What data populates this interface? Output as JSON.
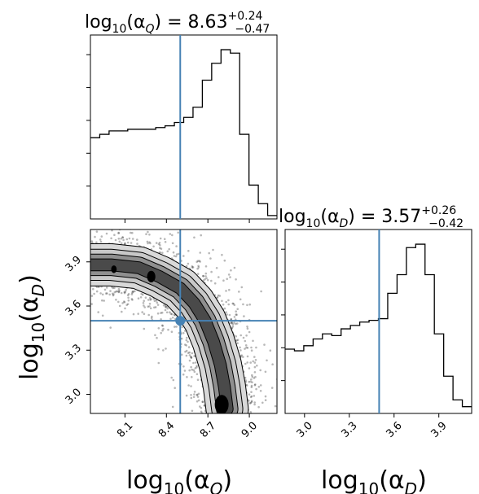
{
  "colors": {
    "truth": "#4682b4",
    "hist": "#000000"
  },
  "parameters": [
    {
      "symbol": "Q",
      "label": "log10(αQ)",
      "median": "8.63",
      "plus": "+0.24",
      "minus": "−0.47",
      "truth": 8.5
    },
    {
      "symbol": "D",
      "label": "log10(αD)",
      "median": "3.57",
      "plus": "+0.26",
      "minus": "−0.42",
      "truth": 3.5
    }
  ],
  "titles": {
    "q": {
      "prefix": "log",
      "base": "10",
      "open": "(α",
      "sym": "Q",
      "close": ") = 8.63",
      "plus": "+0.24",
      "minus": "−0.47"
    },
    "d": {
      "prefix": "log",
      "base": "10",
      "open": "(α",
      "sym": "D",
      "close": ") = 3.57",
      "plus": "+0.26",
      "minus": "−0.42"
    }
  },
  "axis_labels": {
    "x_q": {
      "prefix": "log",
      "base": "10",
      "open": "(α",
      "sym": "Q",
      "close": ")"
    },
    "x_d": {
      "prefix": "log",
      "base": "10",
      "open": "(α",
      "sym": "D",
      "close": ")"
    },
    "y_d": {
      "prefix": "log",
      "base": "10",
      "open": "(α",
      "sym": "D",
      "close": ")"
    }
  },
  "chart_data": [
    {
      "type": "histogram",
      "panel": "log10(alpha_Q) marginal",
      "xlim": [
        7.85,
        9.2
      ],
      "xticks": [
        "8.1",
        "8.4",
        "8.7",
        "9.0"
      ],
      "bin_edges": [
        7.85,
        7.9175,
        7.985,
        8.0525,
        8.12,
        8.1875,
        8.255,
        8.3225,
        8.39,
        8.4575,
        8.525,
        8.5925,
        8.66,
        8.7275,
        8.795,
        8.8625,
        8.93,
        8.9975,
        9.065,
        9.1325,
        9.2
      ],
      "counts": [
        0.48,
        0.5,
        0.52,
        0.52,
        0.53,
        0.53,
        0.53,
        0.54,
        0.55,
        0.57,
        0.6,
        0.66,
        0.82,
        0.92,
        1.0,
        0.98,
        0.5,
        0.2,
        0.09,
        0.02
      ]
    },
    {
      "type": "histogram",
      "panel": "log10(alpha_D) marginal",
      "xlim": [
        2.87,
        4.12
      ],
      "xticks": [
        "3.0",
        "3.3",
        "3.6",
        "3.9"
      ],
      "bin_edges": [
        2.87,
        2.9325,
        2.995,
        3.0575,
        3.12,
        3.1825,
        3.245,
        3.3075,
        3.37,
        3.4325,
        3.495,
        3.5575,
        3.62,
        3.6825,
        3.745,
        3.8075,
        3.87,
        3.9325,
        3.995,
        4.0575,
        4.12
      ],
      "counts": [
        0.38,
        0.37,
        0.4,
        0.44,
        0.47,
        0.46,
        0.5,
        0.52,
        0.54,
        0.55,
        0.56,
        0.71,
        0.82,
        0.98,
        1.0,
        0.82,
        0.47,
        0.22,
        0.08,
        0.04
      ]
    },
    {
      "type": "scatter",
      "panel": "joint log10(alpha_Q) vs log10(alpha_D)",
      "xlim": [
        7.85,
        9.2
      ],
      "ylim": [
        2.87,
        4.12
      ],
      "xticks": [
        "8.1",
        "8.4",
        "8.7",
        "9.0"
      ],
      "yticks": [
        "3.0",
        "3.3",
        "3.6",
        "3.9"
      ],
      "truth_point": [
        8.5,
        3.5
      ],
      "ridge": [
        [
          7.85,
          3.88
        ],
        [
          8.0,
          3.88
        ],
        [
          8.2,
          3.86
        ],
        [
          8.35,
          3.8
        ],
        [
          8.5,
          3.72
        ],
        [
          8.6,
          3.62
        ],
        [
          8.68,
          3.5
        ],
        [
          8.74,
          3.36
        ],
        [
          8.79,
          3.2
        ],
        [
          8.82,
          3.05
        ],
        [
          8.84,
          2.9
        ]
      ]
    }
  ]
}
